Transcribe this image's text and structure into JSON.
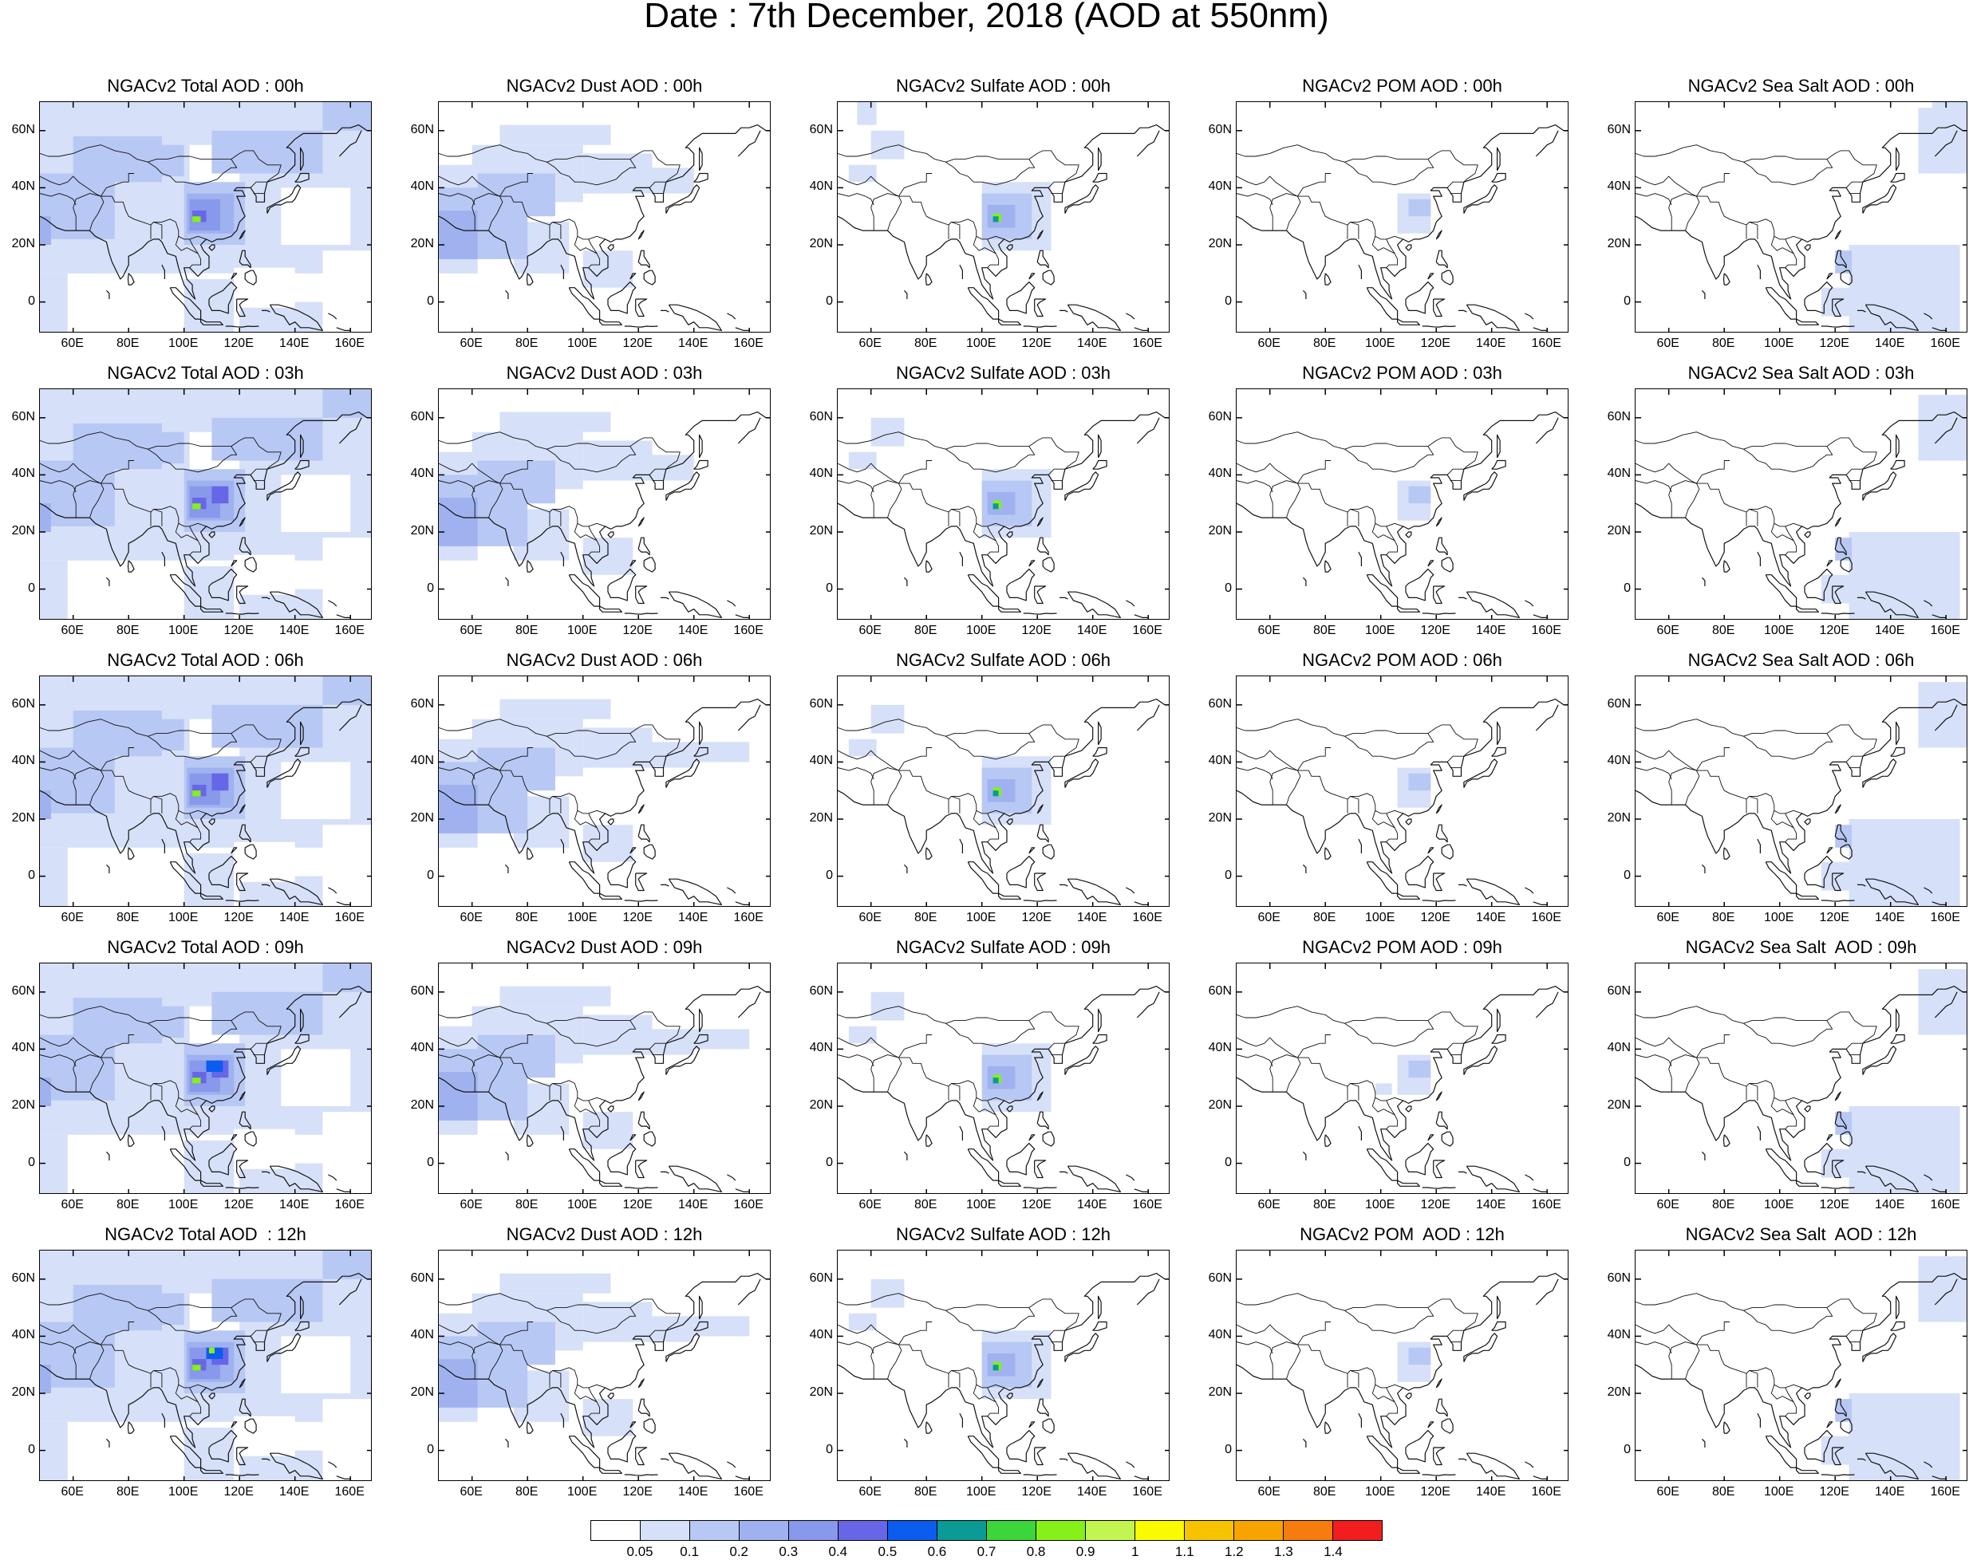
{
  "title": "Date : 7th December, 2018 (AOD at 550nm)",
  "x_tick_labels": [
    "60E",
    "80E",
    "100E",
    "120E",
    "140E",
    "160E"
  ],
  "x_tick_values": [
    60,
    80,
    100,
    120,
    140,
    160
  ],
  "y_tick_labels": [
    "60N",
    "40N",
    "20N",
    "0"
  ],
  "y_tick_values": [
    60,
    40,
    20,
    0
  ],
  "map_extent": {
    "lon": [
      48,
      168
    ],
    "lat": [
      -11,
      70
    ]
  },
  "colorbar": {
    "labels": [
      "0.05",
      "0.1",
      "0.2",
      "0.3",
      "0.4",
      "0.5",
      "0.6",
      "0.7",
      "0.8",
      "0.9",
      "1",
      "1.1",
      "1.2",
      "1.3",
      "1.4"
    ],
    "colors": [
      "#ffffff",
      "#d6e0f8",
      "#b8c8f4",
      "#9fb2ef",
      "#8898ea",
      "#6666e6",
      "#0d5cf0",
      "#0b9a96",
      "#3cd63c",
      "#86f019",
      "#c2f550",
      "#fafa00",
      "#f7c300",
      "#f7a400",
      "#f77c10",
      "#f21e1e"
    ]
  },
  "rows": [
    {
      "hour": "00h",
      "panels": [
        {
          "species": "total",
          "title": "NGACv2 Total AOD : 00h"
        },
        {
          "species": "dust",
          "title": "NGACv2 Dust AOD : 00h"
        },
        {
          "species": "sulfate",
          "title": "NGACv2 Sulfate AOD : 00h"
        },
        {
          "species": "pom",
          "title": "NGACv2 POM AOD : 00h"
        },
        {
          "species": "seasalt",
          "title": "NGACv2 Sea Salt AOD : 00h"
        }
      ]
    },
    {
      "hour": "03h",
      "panels": [
        {
          "species": "total",
          "title": "NGACv2 Total AOD : 03h"
        },
        {
          "species": "dust",
          "title": "NGACv2 Dust AOD : 03h"
        },
        {
          "species": "sulfate",
          "title": "NGACv2 Sulfate AOD : 03h"
        },
        {
          "species": "pom",
          "title": "NGACv2 POM AOD : 03h"
        },
        {
          "species": "seasalt",
          "title": "NGACv2 Sea Salt AOD : 03h"
        }
      ]
    },
    {
      "hour": "06h",
      "panels": [
        {
          "species": "total",
          "title": "NGACv2 Total AOD : 06h"
        },
        {
          "species": "dust",
          "title": "NGACv2 Dust AOD : 06h"
        },
        {
          "species": "sulfate",
          "title": "NGACv2 Sulfate AOD : 06h"
        },
        {
          "species": "pom",
          "title": "NGACv2 POM AOD : 06h"
        },
        {
          "species": "seasalt",
          "title": "NGACv2 Sea Salt AOD : 06h"
        }
      ]
    },
    {
      "hour": "09h",
      "panels": [
        {
          "species": "total",
          "title": "NGACv2 Total AOD : 09h"
        },
        {
          "species": "dust",
          "title": "NGACv2 Dust AOD : 09h"
        },
        {
          "species": "sulfate",
          "title": "NGACv2 Sulfate AOD : 09h"
        },
        {
          "species": "pom",
          "title": "NGACv2 POM AOD : 09h"
        },
        {
          "species": "seasalt",
          "title": "NGACv2 Sea Salt  AOD : 09h"
        }
      ]
    },
    {
      "hour": "12h",
      "panels": [
        {
          "species": "total",
          "title": "NGACv2 Total AOD  : 12h"
        },
        {
          "species": "dust",
          "title": "NGACv2 Dust AOD : 12h"
        },
        {
          "species": "sulfate",
          "title": "NGACv2 Sulfate AOD : 12h"
        },
        {
          "species": "pom",
          "title": "NGACv2 POM  AOD : 12h"
        },
        {
          "species": "seasalt",
          "title": "NGACv2 Sea Salt  AOD : 12h"
        }
      ]
    }
  ]
}
